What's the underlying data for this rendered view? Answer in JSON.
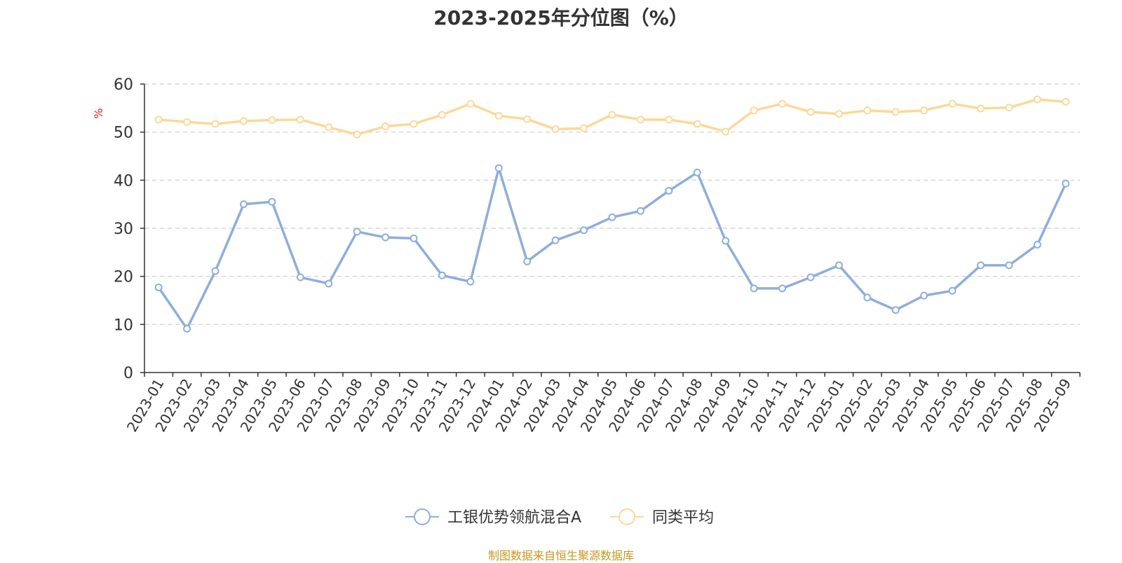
{
  "title": "2023-2025年分位图（%）",
  "source": "制图数据来自恒生聚源数据库",
  "chart_data": {
    "type": "line",
    "title": "2023-2025年分位图（%）",
    "ylabel": "%",
    "ylim": [
      0,
      60
    ],
    "yticks": [
      0,
      10,
      20,
      30,
      40,
      50,
      60
    ],
    "grid": true,
    "legend_position": "bottom",
    "categories": [
      "2023-01",
      "2023-02",
      "2023-03",
      "2023-04",
      "2023-05",
      "2023-06",
      "2023-07",
      "2023-08",
      "2023-09",
      "2023-10",
      "2023-11",
      "2023-12",
      "2024-01",
      "2024-02",
      "2024-03",
      "2024-04",
      "2024-05",
      "2024-06",
      "2024-07",
      "2024-08",
      "2024-09",
      "2024-10",
      "2024-11",
      "2024-12",
      "2025-01",
      "2025-02",
      "2025-03",
      "2025-04",
      "2025-05",
      "2025-06",
      "2025-07",
      "2025-08",
      "2025-09"
    ],
    "series": [
      {
        "name": "工银优势领航混合A",
        "color": "#8eaedb",
        "values": [
          17.7,
          9.1,
          21.1,
          35.0,
          35.5,
          19.8,
          18.5,
          29.3,
          28.1,
          27.9,
          20.2,
          18.9,
          42.5,
          23.1,
          27.5,
          29.6,
          32.3,
          33.6,
          37.8,
          41.6,
          27.4,
          17.5,
          17.5,
          19.8,
          22.3,
          15.6,
          13.0,
          16.0,
          17.0,
          22.3,
          22.3,
          26.6,
          39.3
        ]
      },
      {
        "name": "同类平均",
        "color": "#fcd898",
        "values": [
          52.6,
          52.1,
          51.7,
          52.3,
          52.5,
          52.6,
          51.0,
          49.5,
          51.2,
          51.7,
          53.6,
          55.9,
          53.4,
          52.7,
          50.6,
          50.8,
          53.6,
          52.6,
          52.6,
          51.7,
          50.1,
          54.5,
          55.9,
          54.2,
          53.8,
          54.5,
          54.2,
          54.5,
          55.9,
          54.9,
          55.1,
          56.8,
          56.3
        ]
      }
    ]
  }
}
